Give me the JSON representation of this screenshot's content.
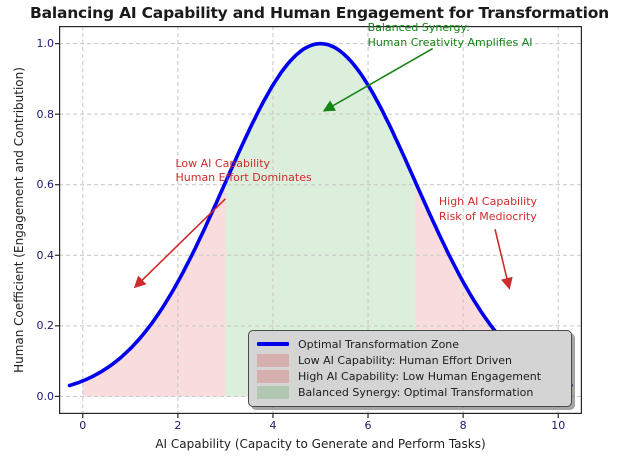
{
  "chart_data": {
    "type": "area",
    "title": "Balancing AI Capability and Human Engagement for Transformation",
    "xlabel": "AI Capability (Capacity to Generate and Perform Tasks)",
    "ylabel": "Human Coefficient (Engagement and Contribution)",
    "xlim": [
      -0.5,
      10.5
    ],
    "ylim": [
      -0.05,
      1.05
    ],
    "x_ticks": [
      "0",
      "2",
      "4",
      "6",
      "8",
      "10"
    ],
    "x_tick_values": [
      0,
      2,
      4,
      6,
      8,
      10
    ],
    "y_ticks": [
      "0.0",
      "0.2",
      "0.4",
      "0.6",
      "0.8",
      "1.0"
    ],
    "y_tick_values": [
      0,
      0.2,
      0.4,
      0.6,
      0.8,
      1.0
    ],
    "grid": {
      "style": "dashed",
      "color": "#c6c6c6"
    },
    "axis_color": "#262626",
    "tick_label_color": "#1b1b6f",
    "curve": {
      "label": "Optimal Transformation Zone",
      "shape": "gaussian",
      "mean": 5,
      "sigma": 2,
      "amplitude": 1.0,
      "x_start": -0.28,
      "x_end": 10.28,
      "color": "#0000ee",
      "width": 3.6
    },
    "regions": [
      {
        "label": "Low AI Capability: Human Effort Driven",
        "x_start": 0,
        "x_end": 3,
        "fill": "rgba(222,45,45,0.17)"
      },
      {
        "label": "High AI Capability: Low Human Engagement",
        "x_start": 7,
        "x_end": 10,
        "fill": "rgba(222,45,45,0.17)"
      },
      {
        "label": "Balanced Synergy: Optimal Transformation",
        "x_start": 3,
        "x_end": 7,
        "fill": "rgba(40,150,40,0.16)"
      }
    ],
    "annotations": [
      {
        "text": "Low AI Capability\nHuman Effort Dominates",
        "color": "#cf2b2b",
        "text_xy": [
          1.95,
          0.68
        ],
        "arrow_from": [
          3.0,
          0.56
        ],
        "arrow_to": [
          1.1,
          0.31
        ]
      },
      {
        "text": "High AI Capability\nRisk of Mediocrity",
        "color": "#cf2b2b",
        "text_xy": [
          7.49,
          0.57
        ],
        "arrow_from": [
          8.67,
          0.474
        ],
        "arrow_to": [
          8.97,
          0.307
        ]
      },
      {
        "text": "Balanced Synergy:\nHuman Creativity Amplifies AI",
        "color": "#168416",
        "text_xy": [
          5.99,
          1.063
        ],
        "arrow_from": [
          7.36,
          0.986
        ],
        "arrow_to": [
          5.08,
          0.81
        ]
      }
    ]
  },
  "legend": {
    "position": "lower right",
    "items": [
      {
        "type": "line",
        "label": "Optimal Transformation Zone",
        "color": "#0000ee"
      },
      {
        "type": "patch",
        "label": "Low AI Capability: Human Effort Driven",
        "color": "rgba(222,45,45,0.22)"
      },
      {
        "type": "patch",
        "label": "High AI Capability: Low Human Engagement",
        "color": "rgba(222,45,45,0.22)"
      },
      {
        "type": "patch",
        "label": "Balanced Synergy: Optimal Transformation",
        "color": "rgba(40,150,40,0.20)"
      }
    ]
  }
}
